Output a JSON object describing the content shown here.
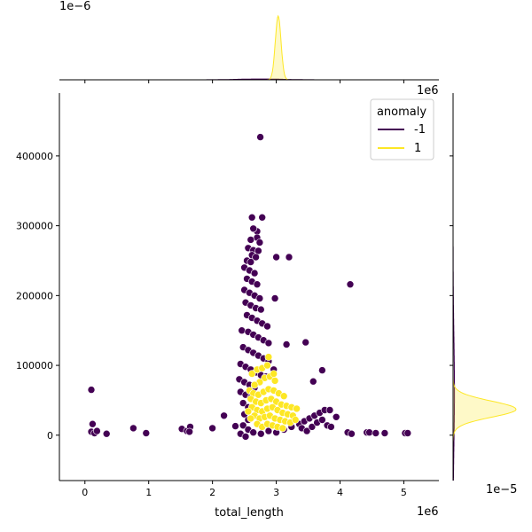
{
  "chart_data": {
    "type": "scatter",
    "xlabel": "total_length",
    "ylabel": "",
    "x_offset_label": "1e6",
    "y_offset_label": "1e6",
    "xlim": [
      -400000,
      5550000
    ],
    "ylim": [
      -65000,
      490000
    ],
    "xticks": [
      0,
      1000000,
      2000000,
      3000000,
      4000000,
      5000000
    ],
    "xtick_labels": [
      "0",
      "1",
      "2",
      "3",
      "4",
      "5"
    ],
    "yticks": [
      0,
      100000,
      200000,
      300000,
      400000
    ],
    "ytick_labels": [
      "0",
      "100000",
      "200000",
      "300000",
      "400000"
    ],
    "grid": false,
    "legend": {
      "title": "anomaly",
      "placement": "upper right",
      "entries": [
        {
          "label": "-1",
          "color": "#440154"
        },
        {
          "label": "1",
          "color": "#fde725"
        }
      ]
    },
    "series": [
      {
        "name": "-1",
        "color": "#440154",
        "points": [
          [
            2750000,
            427000
          ],
          [
            2620000,
            312000
          ],
          [
            2780000,
            312000
          ],
          [
            2700000,
            292000
          ],
          [
            2640000,
            296000
          ],
          [
            2700000,
            283000
          ],
          [
            2600000,
            280000
          ],
          [
            2740000,
            276000
          ],
          [
            2560000,
            268000
          ],
          [
            2640000,
            265000
          ],
          [
            2720000,
            264000
          ],
          [
            2620000,
            258000
          ],
          [
            2680000,
            255000
          ],
          [
            2540000,
            250000
          ],
          [
            2600000,
            248000
          ],
          [
            3000000,
            255000
          ],
          [
            3200000,
            255000
          ],
          [
            4160000,
            216000
          ],
          [
            2500000,
            240000
          ],
          [
            2580000,
            236000
          ],
          [
            2660000,
            232000
          ],
          [
            2540000,
            224000
          ],
          [
            2620000,
            220000
          ],
          [
            2700000,
            216000
          ],
          [
            2500000,
            208000
          ],
          [
            2580000,
            204000
          ],
          [
            2660000,
            200000
          ],
          [
            2740000,
            196000
          ],
          [
            2980000,
            196000
          ],
          [
            2520000,
            190000
          ],
          [
            2600000,
            186000
          ],
          [
            2680000,
            182000
          ],
          [
            2760000,
            180000
          ],
          [
            2540000,
            172000
          ],
          [
            2620000,
            168000
          ],
          [
            2700000,
            164000
          ],
          [
            2780000,
            160000
          ],
          [
            2860000,
            156000
          ],
          [
            2460000,
            150000
          ],
          [
            2560000,
            148000
          ],
          [
            2640000,
            144000
          ],
          [
            2720000,
            140000
          ],
          [
            2800000,
            136000
          ],
          [
            2880000,
            132000
          ],
          [
            3160000,
            130000
          ],
          [
            3460000,
            133000
          ],
          [
            2480000,
            126000
          ],
          [
            2560000,
            122000
          ],
          [
            2640000,
            118000
          ],
          [
            2720000,
            114000
          ],
          [
            2800000,
            110000
          ],
          [
            2880000,
            106000
          ],
          [
            2440000,
            102000
          ],
          [
            2520000,
            98000
          ],
          [
            2600000,
            94000
          ],
          [
            2680000,
            90000
          ],
          [
            2760000,
            86000
          ],
          [
            2840000,
            84000
          ],
          [
            2960000,
            94000
          ],
          [
            3720000,
            93000
          ],
          [
            2420000,
            80000
          ],
          [
            2500000,
            76000
          ],
          [
            2580000,
            72000
          ],
          [
            2660000,
            68000
          ],
          [
            3580000,
            77000
          ],
          [
            2440000,
            62000
          ],
          [
            2520000,
            58000
          ],
          [
            2600000,
            54000
          ],
          [
            2480000,
            46000
          ],
          [
            2560000,
            40000
          ],
          [
            2500000,
            30000
          ],
          [
            2560000,
            22000
          ],
          [
            2480000,
            14000
          ],
          [
            2560000,
            8000
          ],
          [
            2440000,
            2000
          ],
          [
            2520000,
            -2000
          ],
          [
            2640000,
            4000
          ],
          [
            2760000,
            2000
          ],
          [
            2880000,
            6000
          ],
          [
            3000000,
            4000
          ],
          [
            3120000,
            8000
          ],
          [
            3240000,
            12000
          ],
          [
            3360000,
            16000
          ],
          [
            3440000,
            20000
          ],
          [
            3520000,
            24000
          ],
          [
            3600000,
            28000
          ],
          [
            3680000,
            32000
          ],
          [
            3760000,
            36000
          ],
          [
            3840000,
            36000
          ],
          [
            3940000,
            26000
          ],
          [
            3400000,
            10000
          ],
          [
            3480000,
            6000
          ],
          [
            3560000,
            12000
          ],
          [
            3640000,
            18000
          ],
          [
            3720000,
            22000
          ],
          [
            3800000,
            14000
          ],
          [
            3860000,
            12000
          ],
          [
            4120000,
            4000
          ],
          [
            4180000,
            2000
          ],
          [
            4420000,
            4000
          ],
          [
            4460000,
            4000
          ],
          [
            4560000,
            3000
          ],
          [
            4700000,
            3000
          ],
          [
            5020000,
            3000
          ],
          [
            5060000,
            3000
          ],
          [
            100000,
            65000
          ],
          [
            120000,
            16000
          ],
          [
            100000,
            5000
          ],
          [
            150000,
            3000
          ],
          [
            190000,
            6000
          ],
          [
            340000,
            2000
          ],
          [
            760000,
            10000
          ],
          [
            960000,
            3000
          ],
          [
            1520000,
            9000
          ],
          [
            1600000,
            6000
          ],
          [
            1650000,
            12000
          ],
          [
            1640000,
            5000
          ],
          [
            2000000,
            10000
          ],
          [
            2180000,
            28000
          ],
          [
            2360000,
            13000
          ]
        ]
      },
      {
        "name": "1",
        "color": "#fde725",
        "points": [
          [
            2620000,
            88000
          ],
          [
            2700000,
            94000
          ],
          [
            2780000,
            96000
          ],
          [
            2860000,
            100000
          ],
          [
            2880000,
            112000
          ],
          [
            2820000,
            82000
          ],
          [
            2900000,
            84000
          ],
          [
            2980000,
            78000
          ],
          [
            2740000,
            76000
          ],
          [
            2660000,
            72000
          ],
          [
            2580000,
            64000
          ],
          [
            2640000,
            60000
          ],
          [
            2720000,
            58000
          ],
          [
            2800000,
            62000
          ],
          [
            2880000,
            66000
          ],
          [
            2960000,
            64000
          ],
          [
            3040000,
            60000
          ],
          [
            3120000,
            56000
          ],
          [
            2600000,
            52000
          ],
          [
            2680000,
            48000
          ],
          [
            2760000,
            46000
          ],
          [
            2840000,
            50000
          ],
          [
            2920000,
            52000
          ],
          [
            3000000,
            48000
          ],
          [
            3080000,
            44000
          ],
          [
            3160000,
            42000
          ],
          [
            3240000,
            40000
          ],
          [
            3320000,
            38000
          ],
          [
            2620000,
            40000
          ],
          [
            2700000,
            36000
          ],
          [
            2780000,
            34000
          ],
          [
            2860000,
            38000
          ],
          [
            2940000,
            40000
          ],
          [
            3020000,
            36000
          ],
          [
            3100000,
            32000
          ],
          [
            3180000,
            30000
          ],
          [
            3260000,
            28000
          ],
          [
            2660000,
            28000
          ],
          [
            2740000,
            24000
          ],
          [
            2820000,
            26000
          ],
          [
            2900000,
            28000
          ],
          [
            2980000,
            24000
          ],
          [
            3060000,
            22000
          ],
          [
            3140000,
            20000
          ],
          [
            3220000,
            18000
          ],
          [
            3300000,
            22000
          ],
          [
            2700000,
            16000
          ],
          [
            2780000,
            12000
          ],
          [
            2860000,
            16000
          ],
          [
            2940000,
            14000
          ],
          [
            3020000,
            12000
          ],
          [
            3100000,
            10000
          ],
          [
            2560000,
            34000
          ],
          [
            2600000,
            24000
          ],
          [
            2960000,
            88000
          ]
        ]
      }
    ],
    "top_marginal": {
      "offset_label": "1e−6",
      "curves": [
        {
          "series": "1",
          "color": "#fde725",
          "peak_x": 3030000,
          "peak_density": 3.1e-06,
          "spread": 45000
        },
        {
          "series": "-1",
          "color": "#440154",
          "peak_x": 2750000,
          "peak_density": 4e-08,
          "spread": 350000
        }
      ]
    },
    "right_marginal": {
      "offset_label": "1e−5",
      "curves": [
        {
          "series": "1",
          "color": "#fde725",
          "peak_y": 37000,
          "peak_density": 1.8e-05,
          "spread": 12000
        },
        {
          "series": "-1",
          "color": "#440154",
          "peak_y": 60000,
          "peak_density": 4e-07,
          "spread": 80000
        }
      ]
    }
  }
}
